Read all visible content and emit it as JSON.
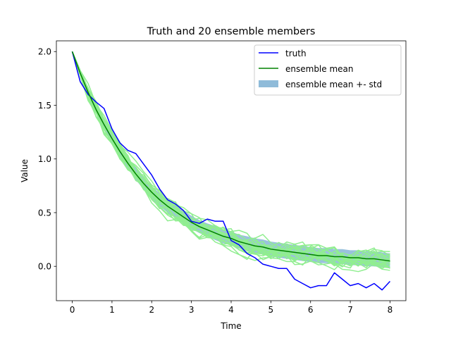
{
  "chart_data": {
    "type": "line",
    "title": "Truth and 20 ensemble members",
    "xlabel": "Time",
    "ylabel": "Value",
    "xlim": [
      -0.4,
      8.4
    ],
    "ylim": [
      -0.32,
      2.1
    ],
    "xticks": [
      0,
      1,
      2,
      3,
      4,
      5,
      6,
      7,
      8
    ],
    "xtick_labels": [
      "0",
      "1",
      "2",
      "3",
      "4",
      "5",
      "6",
      "7",
      "8"
    ],
    "yticks": [
      0.0,
      0.5,
      1.0,
      1.5,
      2.0
    ],
    "ytick_labels": [
      "0.0",
      "0.5",
      "1.0",
      "1.5",
      "2.0"
    ],
    "grid": false,
    "legend_position": "top-right",
    "n_members": 20,
    "colors": {
      "truth": "#0000ff",
      "mean": "#008000",
      "band": "#1f77b4",
      "members": "#90ee90"
    },
    "legend": [
      {
        "label": "truth",
        "kind": "line",
        "color": "#0000ff"
      },
      {
        "label": "ensemble mean",
        "kind": "line",
        "color": "#008000"
      },
      {
        "label": "ensemble mean +- std",
        "kind": "patch",
        "color": "#1f77b4"
      }
    ],
    "series": [
      {
        "name": "truth",
        "x": [
          0,
          0.2,
          0.4,
          0.6,
          0.8,
          1.0,
          1.2,
          1.4,
          1.6,
          1.8,
          2.0,
          2.2,
          2.4,
          2.6,
          2.8,
          3.0,
          3.2,
          3.4,
          3.6,
          3.8,
          4.0,
          4.2,
          4.4,
          4.6,
          4.8,
          5.0,
          5.2,
          5.4,
          5.6,
          5.8,
          6.0,
          6.2,
          6.4,
          6.6,
          6.8,
          7.0,
          7.2,
          7.4,
          7.6,
          7.8,
          8.0
        ],
        "y": [
          2.0,
          1.72,
          1.6,
          1.53,
          1.47,
          1.28,
          1.15,
          1.08,
          1.05,
          0.95,
          0.85,
          0.72,
          0.62,
          0.58,
          0.52,
          0.42,
          0.4,
          0.44,
          0.42,
          0.42,
          0.24,
          0.2,
          0.12,
          0.08,
          0.02,
          0.0,
          -0.02,
          -0.02,
          -0.12,
          -0.16,
          -0.2,
          -0.18,
          -0.18,
          -0.06,
          -0.12,
          -0.18,
          -0.16,
          -0.2,
          -0.16,
          -0.22,
          -0.14
        ]
      },
      {
        "name": "ensemble mean",
        "x": [
          0,
          0.2,
          0.4,
          0.6,
          0.8,
          1.0,
          1.2,
          1.4,
          1.6,
          1.8,
          2.0,
          2.2,
          2.4,
          2.6,
          2.8,
          3.0,
          3.2,
          3.4,
          3.6,
          3.8,
          4.0,
          4.2,
          4.4,
          4.6,
          4.8,
          5.0,
          5.2,
          5.4,
          5.6,
          5.8,
          6.0,
          6.2,
          6.4,
          6.6,
          6.8,
          7.0,
          7.2,
          7.4,
          7.6,
          7.8,
          8.0
        ],
        "y": [
          2.0,
          1.8,
          1.62,
          1.46,
          1.32,
          1.19,
          1.07,
          0.96,
          0.86,
          0.77,
          0.69,
          0.62,
          0.56,
          0.51,
          0.46,
          0.41,
          0.37,
          0.34,
          0.31,
          0.28,
          0.26,
          0.23,
          0.21,
          0.19,
          0.18,
          0.16,
          0.15,
          0.14,
          0.13,
          0.12,
          0.11,
          0.1,
          0.1,
          0.09,
          0.09,
          0.08,
          0.08,
          0.07,
          0.07,
          0.06,
          0.05
        ]
      }
    ],
    "band": {
      "name": "ensemble mean +- std",
      "x": [
        0,
        0.2,
        0.4,
        0.6,
        0.8,
        1.0,
        1.2,
        1.4,
        1.6,
        1.8,
        2.0,
        2.2,
        2.4,
        2.6,
        2.8,
        3.0,
        3.2,
        3.4,
        3.6,
        3.8,
        4.0,
        4.2,
        4.4,
        4.6,
        4.8,
        5.0,
        5.2,
        5.4,
        5.6,
        5.8,
        6.0,
        6.2,
        6.4,
        6.6,
        6.8,
        7.0,
        7.2,
        7.4,
        7.6,
        7.8,
        8.0
      ],
      "std": [
        0.0,
        0.02,
        0.03,
        0.035,
        0.04,
        0.045,
        0.05,
        0.05,
        0.055,
        0.055,
        0.06,
        0.06,
        0.06,
        0.06,
        0.06,
        0.06,
        0.06,
        0.06,
        0.065,
        0.065,
        0.065,
        0.065,
        0.07,
        0.07,
        0.07,
        0.07,
        0.07,
        0.07,
        0.07,
        0.07,
        0.07,
        0.07,
        0.07,
        0.07,
        0.07,
        0.07,
        0.07,
        0.07,
        0.07,
        0.07,
        0.07
      ]
    }
  }
}
